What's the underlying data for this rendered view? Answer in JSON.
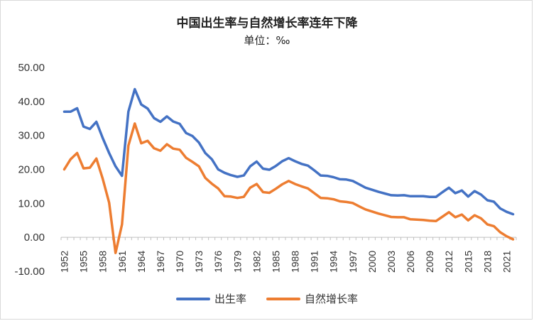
{
  "chart_data": {
    "type": "line",
    "title": "中国出生率与自然增长率连年下降",
    "subtitle": "单位：‰",
    "xlabel": "",
    "ylabel": "",
    "ylim": [
      -10,
      50
    ],
    "yticks": [
      "50.00",
      "40.00",
      "30.00",
      "20.00",
      "10.00",
      "0.00",
      "-10.00"
    ],
    "x": [
      1952,
      1953,
      1954,
      1955,
      1956,
      1957,
      1958,
      1959,
      1960,
      1961,
      1962,
      1963,
      1964,
      1965,
      1966,
      1967,
      1968,
      1969,
      1970,
      1971,
      1972,
      1973,
      1974,
      1975,
      1976,
      1977,
      1978,
      1979,
      1980,
      1981,
      1982,
      1983,
      1984,
      1985,
      1986,
      1987,
      1988,
      1989,
      1990,
      1991,
      1992,
      1993,
      1994,
      1995,
      1996,
      1997,
      1998,
      1999,
      2000,
      2001,
      2002,
      2003,
      2004,
      2005,
      2006,
      2007,
      2008,
      2009,
      2010,
      2011,
      2012,
      2013,
      2014,
      2015,
      2016,
      2017,
      2018,
      2019,
      2020,
      2021,
      2022
    ],
    "xtick_labels": [
      "1952",
      "1955",
      "1958",
      "1961",
      "1964",
      "1967",
      "1970",
      "1973",
      "1976",
      "1979",
      "1982",
      "1985",
      "1988",
      "1991",
      "1994",
      "1997",
      "2000",
      "2003",
      "2006",
      "2009",
      "2012",
      "2015",
      "2018",
      "2021"
    ],
    "series": [
      {
        "name": "出生率",
        "color": "#4472c4",
        "values": [
          37.0,
          37.0,
          38.0,
          32.6,
          31.9,
          34.0,
          29.2,
          24.8,
          20.9,
          18.1,
          37.0,
          43.6,
          39.1,
          37.9,
          35.1,
          34.0,
          35.6,
          34.1,
          33.4,
          30.7,
          29.8,
          27.9,
          24.8,
          23.0,
          20.0,
          19.0,
          18.3,
          17.8,
          18.2,
          20.9,
          22.3,
          20.2,
          19.9,
          21.0,
          22.4,
          23.3,
          22.4,
          21.6,
          21.1,
          19.7,
          18.2,
          18.1,
          17.7,
          17.1,
          17.0,
          16.6,
          15.6,
          14.6,
          14.0,
          13.4,
          12.9,
          12.4,
          12.3,
          12.4,
          12.1,
          12.1,
          12.1,
          11.9,
          11.9,
          13.3,
          14.6,
          13.0,
          13.8,
          12.0,
          13.6,
          12.6,
          10.9,
          10.5,
          8.5,
          7.5,
          6.8
        ]
      },
      {
        "name": "自然增长率",
        "color": "#ed7d31",
        "values": [
          20.0,
          23.0,
          24.8,
          20.3,
          20.5,
          23.2,
          17.2,
          10.2,
          -4.6,
          3.8,
          27.0,
          33.5,
          27.7,
          28.4,
          26.2,
          25.5,
          27.4,
          26.1,
          25.8,
          23.4,
          22.2,
          20.9,
          17.5,
          15.8,
          14.4,
          12.1,
          12.0,
          11.6,
          11.9,
          14.6,
          15.7,
          13.3,
          13.1,
          14.3,
          15.6,
          16.6,
          15.7,
          15.0,
          14.4,
          13.0,
          11.6,
          11.5,
          11.2,
          10.6,
          10.4,
          10.1,
          9.1,
          8.2,
          7.6,
          7.0,
          6.5,
          6.0,
          5.9,
          5.9,
          5.3,
          5.2,
          5.1,
          4.9,
          4.8,
          6.1,
          7.4,
          5.9,
          6.7,
          5.0,
          6.5,
          5.6,
          3.8,
          3.3,
          1.5,
          0.3,
          -0.6
        ]
      }
    ],
    "legend_position": "bottom",
    "grid": false
  }
}
